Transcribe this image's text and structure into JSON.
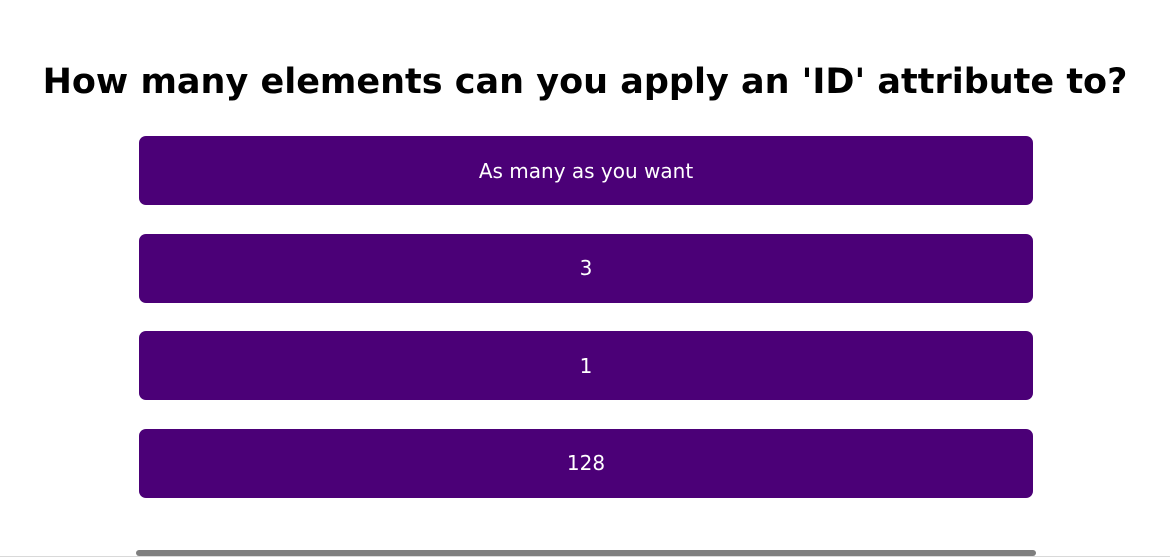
{
  "quiz": {
    "question": "How many elements can you apply an 'ID' attribute to?",
    "answers": [
      {
        "label": "As many as you want"
      },
      {
        "label": "3"
      },
      {
        "label": "1"
      },
      {
        "label": "128"
      }
    ]
  },
  "colors": {
    "button_bg": "#4b0077",
    "button_text": "#ffffff",
    "scrollbar": "#7f7f7f"
  }
}
